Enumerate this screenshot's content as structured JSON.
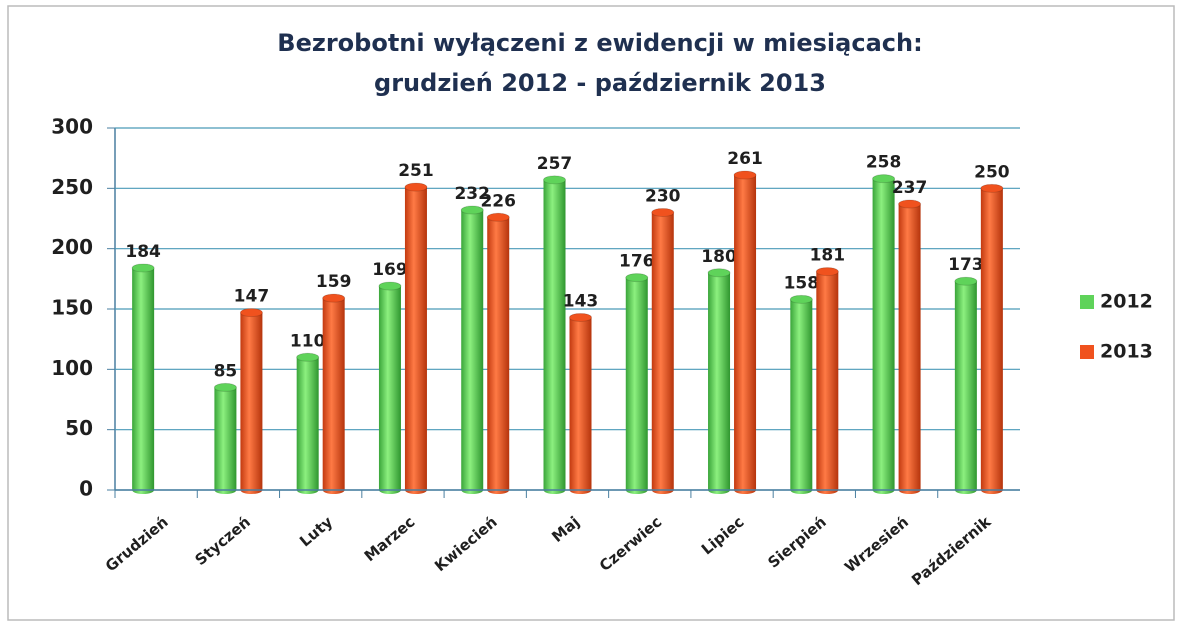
{
  "chart_data": {
    "type": "bar",
    "title": "Bezrobotni wyłączeni z ewidencji w miesiącach:",
    "subtitle": "grudzień  2012 - październik 2013",
    "categories": [
      "Grudzień",
      "Styczeń",
      "Luty",
      "Marzec",
      "Kwiecień",
      "Maj",
      "Czerwiec",
      "Lipiec",
      "Sierpień",
      "Wrzesień",
      "Październik"
    ],
    "series": [
      {
        "name": "2012",
        "color": "#5fd35a",
        "values": [
          184,
          85,
          110,
          169,
          232,
          257,
          176,
          180,
          158,
          258,
          173
        ]
      },
      {
        "name": "2013",
        "color": "#f0521e",
        "values": [
          null,
          147,
          159,
          251,
          226,
          143,
          230,
          261,
          181,
          237,
          250
        ]
      }
    ],
    "ylim": [
      0,
      300
    ],
    "yticks": [
      0,
      50,
      100,
      150,
      200,
      250,
      300
    ],
    "grid": true,
    "legend": "right"
  }
}
